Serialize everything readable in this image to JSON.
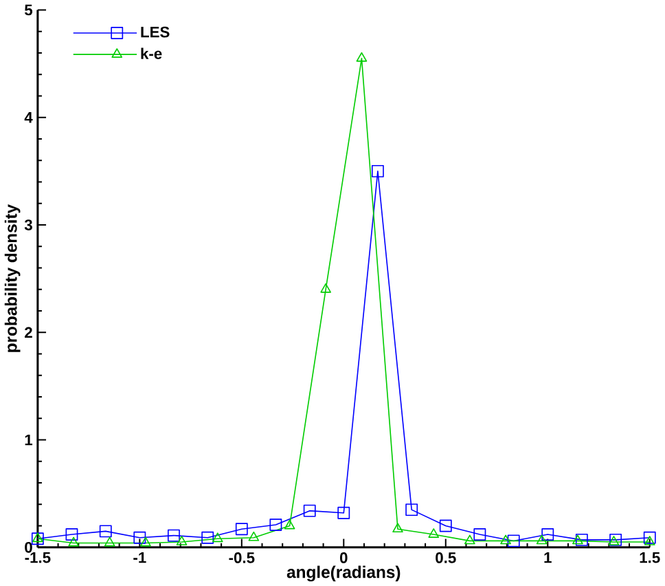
{
  "chart_data": {
    "type": "line",
    "xlabel": "angle(radians)",
    "ylabel": "probability density",
    "xlim": [
      -1.5,
      1.5
    ],
    "ylim": [
      0,
      5
    ],
    "xticks": [
      -1.5,
      -1,
      -0.5,
      0,
      0.5,
      1,
      1.5
    ],
    "yticks": [
      0,
      1,
      2,
      3,
      4,
      5
    ],
    "legend": "top left",
    "grid": false,
    "series": [
      {
        "name": "LES",
        "color": "#0000ff",
        "marker": "square",
        "x": [
          -1.5,
          -1.333,
          -1.167,
          -1,
          -0.833,
          -0.667,
          -0.5,
          -0.333,
          -0.167,
          0,
          0.167,
          0.333,
          0.5,
          0.667,
          0.833,
          1,
          1.167,
          1.333,
          1.5
        ],
        "values": [
          0.08,
          0.12,
          0.15,
          0.09,
          0.11,
          0.09,
          0.17,
          0.21,
          0.34,
          0.32,
          3.5,
          0.35,
          0.2,
          0.12,
          0.06,
          0.12,
          0.07,
          0.07,
          0.09
        ]
      },
      {
        "name": "k-e",
        "color": "#00cc00",
        "marker": "triangle",
        "x": [
          -1.5,
          -1.324,
          -1.147,
          -0.971,
          -0.794,
          -0.618,
          -0.441,
          -0.265,
          -0.088,
          0.088,
          0.265,
          0.441,
          0.618,
          0.794,
          0.971,
          1.147,
          1.324,
          1.5
        ],
        "values": [
          0.08,
          0.04,
          0.04,
          0.04,
          0.05,
          0.08,
          0.09,
          0.2,
          2.4,
          4.55,
          0.17,
          0.12,
          0.06,
          0.06,
          0.06,
          0.06,
          0.05,
          0.05
        ]
      }
    ]
  }
}
